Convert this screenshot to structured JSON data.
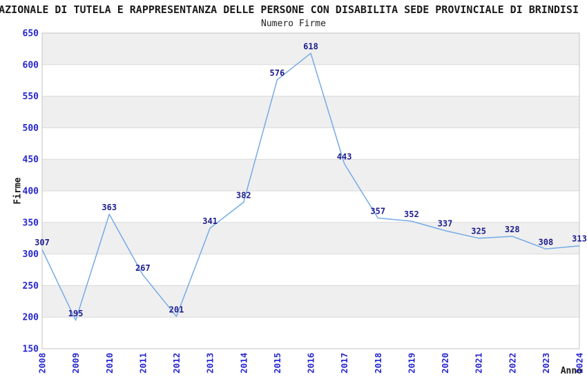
{
  "figure": {
    "title": "NAZIONALE DI TUTELA E RAPPRESENTANZA DELLE PERSONE CON DISABILITA SEDE PROVINCIALE DI BRINDISI",
    "subtitle": "Numero Firme"
  },
  "chart_data": {
    "type": "line",
    "title": "Numero Firme",
    "xlabel": "Anno",
    "ylabel": "Firme",
    "x": [
      2008,
      2009,
      2010,
      2011,
      2012,
      2013,
      2014,
      2015,
      2016,
      2017,
      2018,
      2019,
      2020,
      2021,
      2022,
      2023,
      2024
    ],
    "values": [
      307,
      195,
      363,
      267,
      201,
      341,
      382,
      576,
      618,
      443,
      357,
      352,
      337,
      325,
      328,
      308,
      313
    ],
    "ylim": [
      150,
      650
    ],
    "ytick_step": 50,
    "grid": true,
    "legend": false,
    "point_labels_visible": true,
    "colors": {
      "line": "#74aae6",
      "tick_label": "#2626cf",
      "point_label": "#1c1c8f",
      "band_gray": "#efefef",
      "band_white": "#ffffff",
      "grid_line": "#d9d9d9",
      "plot_border": "#c3c3c3",
      "text": "#1a1a1a"
    }
  }
}
